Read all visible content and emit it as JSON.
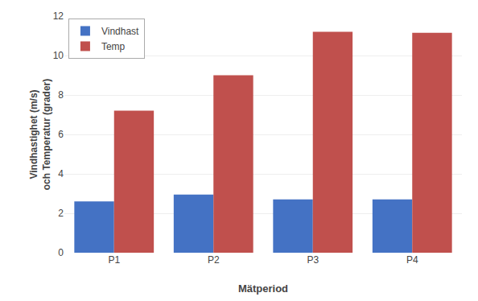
{
  "chart_data": {
    "type": "bar",
    "xlabel": "Mätperiod",
    "ylabel": "Vindhastighet (m/s)\noch Temperatur (grader)",
    "categories": [
      "P1",
      "P2",
      "P3",
      "P4"
    ],
    "series": [
      {
        "name": "Vindhast",
        "color": "#4472C4",
        "values": [
          2.6,
          2.95,
          2.7,
          2.7
        ]
      },
      {
        "name": "Temp",
        "color": "#C0504D",
        "values": [
          7.2,
          9.0,
          11.2,
          11.15
        ]
      }
    ],
    "ylim": [
      0,
      12
    ],
    "yticks": [
      0,
      2,
      4,
      6,
      8,
      10,
      12
    ],
    "grid": true,
    "legend": "upper left"
  }
}
